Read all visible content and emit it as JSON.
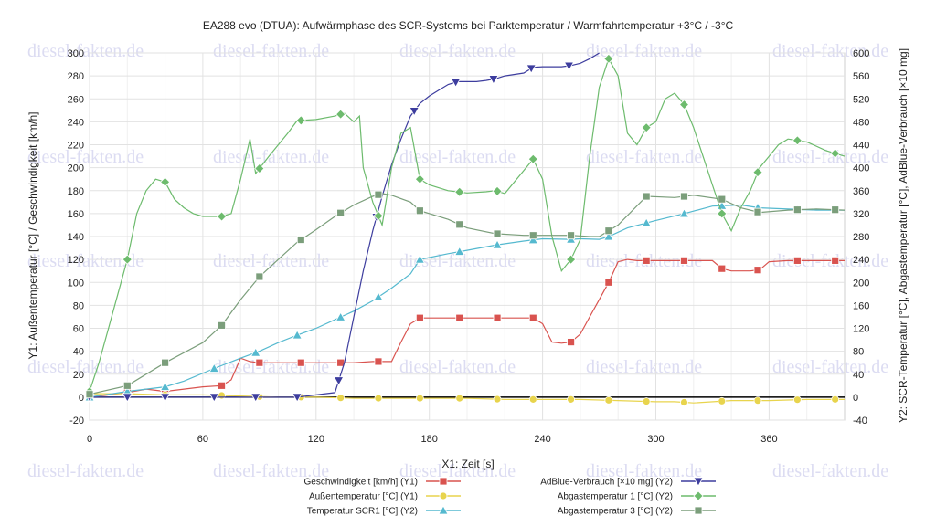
{
  "chart_data": {
    "type": "line",
    "title": "EA288 evo (DTUA): Aufwärmphase des SCR-Systems bei Parktemperatur / Warmfahrtemperatur +3°C / -3°C",
    "xlabel": "X1: Zeit [s]",
    "ylabel_left": "Y1: Außentemperatur [°C] / Geschwindigkeit [km/h]",
    "ylabel_right": "Y2: SCR-Temperatur [°C], Abgastemperatur [°C], AdBlue-Verbrauch [×10 mg]",
    "xlim": [
      0,
      400
    ],
    "ylim_left": [
      -20,
      300
    ],
    "ylim_right": [
      -40,
      600
    ],
    "x_ticks": [
      "0",
      "60",
      "120",
      "180",
      "240",
      "300",
      "360"
    ],
    "y_left_ticks": [
      "-20",
      "0",
      "20",
      "40",
      "60",
      "80",
      "100",
      "120",
      "140",
      "160",
      "180",
      "200",
      "220",
      "240",
      "260",
      "280",
      "300"
    ],
    "y_right_ticks": [
      "-40",
      "0",
      "40",
      "80",
      "120",
      "160",
      "200",
      "240",
      "280",
      "320",
      "360",
      "400",
      "440",
      "480",
      "520",
      "560",
      "600"
    ],
    "grid": true,
    "legend_position": "bottom",
    "watermark": "diesel-fakten.de",
    "series": [
      {
        "name": "Geschwindigkeit [km/h] (Y1)",
        "axis": "left",
        "color": "#d9534f",
        "marker": "square",
        "x": [
          0,
          10,
          20,
          30,
          40,
          50,
          60,
          70,
          75,
          80,
          85,
          90,
          100,
          110,
          120,
          130,
          140,
          150,
          160,
          165,
          170,
          175,
          180,
          190,
          200,
          210,
          220,
          230,
          235,
          240,
          245,
          250,
          255,
          260,
          265,
          270,
          275,
          280,
          285,
          290,
          300,
          310,
          320,
          330,
          335,
          340,
          345,
          350,
          355,
          360,
          370,
          380,
          390,
          400
        ],
        "y": [
          0,
          2,
          4,
          7,
          5,
          7,
          9,
          10,
          15,
          34,
          31,
          30,
          30,
          30,
          30,
          30,
          30,
          31,
          31,
          48,
          64,
          69,
          69,
          69,
          69,
          69,
          69,
          69,
          69,
          64,
          48,
          47,
          48,
          55,
          70,
          85,
          100,
          118,
          120,
          119,
          119,
          119,
          119,
          119,
          112,
          110,
          110,
          110,
          111,
          118,
          119,
          119,
          119,
          119
        ],
        "marker_x": [
          0,
          20,
          40,
          70,
          90,
          112,
          133,
          153,
          175,
          196,
          216,
          235,
          255,
          275,
          295,
          315,
          335,
          354,
          375,
          395
        ]
      },
      {
        "name": "Außentemperatur [°C] (Y1)",
        "axis": "left",
        "color": "#e8d44d",
        "marker": "circle",
        "x": [
          0,
          20,
          40,
          60,
          80,
          100,
          120,
          140,
          160,
          180,
          200,
          220,
          240,
          260,
          280,
          300,
          310,
          320,
          340,
          360,
          380,
          400
        ],
        "y": [
          3,
          3,
          2,
          2,
          1,
          0,
          0,
          -1,
          -1,
          -1,
          -1,
          -2,
          -2,
          -2,
          -3,
          -4,
          -4,
          -5,
          -3,
          -3,
          -2,
          -2
        ],
        "marker_x": [
          0,
          20,
          40,
          70,
          90,
          112,
          133,
          153,
          175,
          196,
          216,
          235,
          255,
          275,
          295,
          315,
          335,
          354,
          375,
          395
        ]
      },
      {
        "name": "Temperatur SCR1 [°C] (Y2)",
        "axis": "right",
        "color": "#55b9cf",
        "marker": "triangle",
        "x": [
          0,
          20,
          40,
          50,
          66,
          80,
          90,
          100,
          110,
          120,
          130,
          140,
          150,
          160,
          170,
          175,
          190,
          200,
          215,
          230,
          240,
          255,
          260,
          270,
          275,
          285,
          300,
          315,
          330,
          345,
          355,
          370,
          385,
          400
        ],
        "y": [
          0,
          10,
          18,
          28,
          50,
          68,
          80,
          95,
          108,
          120,
          135,
          150,
          168,
          190,
          215,
          240,
          250,
          256,
          265,
          272,
          276,
          275,
          276,
          275,
          280,
          295,
          308,
          320,
          333,
          335,
          330,
          328,
          326,
          326
        ],
        "marker_x": [
          0,
          20,
          40,
          66,
          88,
          110,
          133,
          153,
          175,
          196,
          216,
          235,
          255,
          275,
          295,
          315,
          335,
          354,
          375,
          395
        ]
      },
      {
        "name": "AdBlue-Verbrauch [×10 mg] (Y2)",
        "axis": "right",
        "color": "#3d3d9e",
        "marker": "triangle-down",
        "x": [
          0,
          60,
          100,
          110,
          130,
          135,
          140,
          145,
          150,
          155,
          160,
          165,
          170,
          175,
          180,
          185,
          190,
          195,
          205,
          210,
          215,
          220,
          230,
          235,
          240,
          250,
          255,
          260,
          265,
          270
        ],
        "y": [
          0,
          0,
          0,
          0,
          8,
          60,
          140,
          220,
          290,
          350,
          405,
          450,
          490,
          512,
          525,
          535,
          545,
          550,
          550,
          552,
          555,
          560,
          565,
          575,
          576,
          576,
          578,
          582,
          590,
          600
        ],
        "marker_x": [
          0,
          20,
          40,
          66,
          88,
          110,
          132,
          152,
          172,
          194,
          214,
          234,
          254
        ]
      },
      {
        "name": "Abgastemperatur 1 [°C] (Y2)",
        "axis": "right",
        "color": "#6dbb6d",
        "marker": "diamond",
        "x": [
          0,
          5,
          10,
          15,
          20,
          25,
          30,
          35,
          40,
          45,
          50,
          55,
          60,
          65,
          70,
          75,
          80,
          85,
          88,
          95,
          105,
          110,
          120,
          130,
          135,
          140,
          143,
          145,
          150,
          155,
          160,
          165,
          170,
          175,
          180,
          190,
          200,
          210,
          215,
          220,
          230,
          235,
          240,
          245,
          250,
          255,
          260,
          265,
          270,
          275,
          280,
          285,
          290,
          295,
          300,
          305,
          310,
          315,
          320,
          325,
          330,
          335,
          340,
          345,
          350,
          355,
          360,
          365,
          370,
          380,
          390,
          400
        ],
        "y": [
          10,
          60,
          120,
          180,
          240,
          320,
          360,
          380,
          375,
          345,
          330,
          320,
          315,
          315,
          315,
          320,
          380,
          450,
          390,
          420,
          460,
          482,
          484,
          490,
          495,
          480,
          490,
          400,
          340,
          300,
          400,
          460,
          470,
          380,
          370,
          360,
          356,
          358,
          360,
          355,
          395,
          415,
          380,
          280,
          220,
          240,
          275,
          420,
          540,
          590,
          560,
          460,
          440,
          470,
          480,
          520,
          530,
          510,
          470,
          420,
          370,
          320,
          290,
          330,
          360,
          400,
          420,
          440,
          450,
          445,
          430,
          420
        ],
        "marker_x": [
          0,
          20,
          40,
          70,
          90,
          112,
          133,
          153,
          175,
          196,
          216,
          235,
          255,
          275,
          295,
          315,
          335,
          354,
          375,
          395
        ]
      },
      {
        "name": "Abgastemperatur 3 [°C] (Y2)",
        "axis": "right",
        "color": "#7b9e7b",
        "marker": "square",
        "x": [
          0,
          20,
          40,
          60,
          70,
          80,
          90,
          100,
          110,
          120,
          130,
          140,
          150,
          155,
          160,
          170,
          175,
          190,
          200,
          215,
          230,
          240,
          255,
          265,
          270,
          280,
          295,
          310,
          320,
          335,
          345,
          355,
          370,
          385,
          400
        ],
        "y": [
          5,
          20,
          60,
          95,
          125,
          170,
          210,
          240,
          270,
          292,
          315,
          335,
          350,
          355,
          352,
          340,
          325,
          310,
          295,
          285,
          282,
          282,
          282,
          280,
          280,
          300,
          350,
          348,
          352,
          345,
          330,
          322,
          326,
          328,
          326
        ],
        "marker_x": [
          0,
          20,
          40,
          70,
          90,
          112,
          133,
          153,
          175,
          196,
          216,
          235,
          255,
          275,
          295,
          315,
          335,
          354,
          375,
          395
        ]
      }
    ]
  }
}
